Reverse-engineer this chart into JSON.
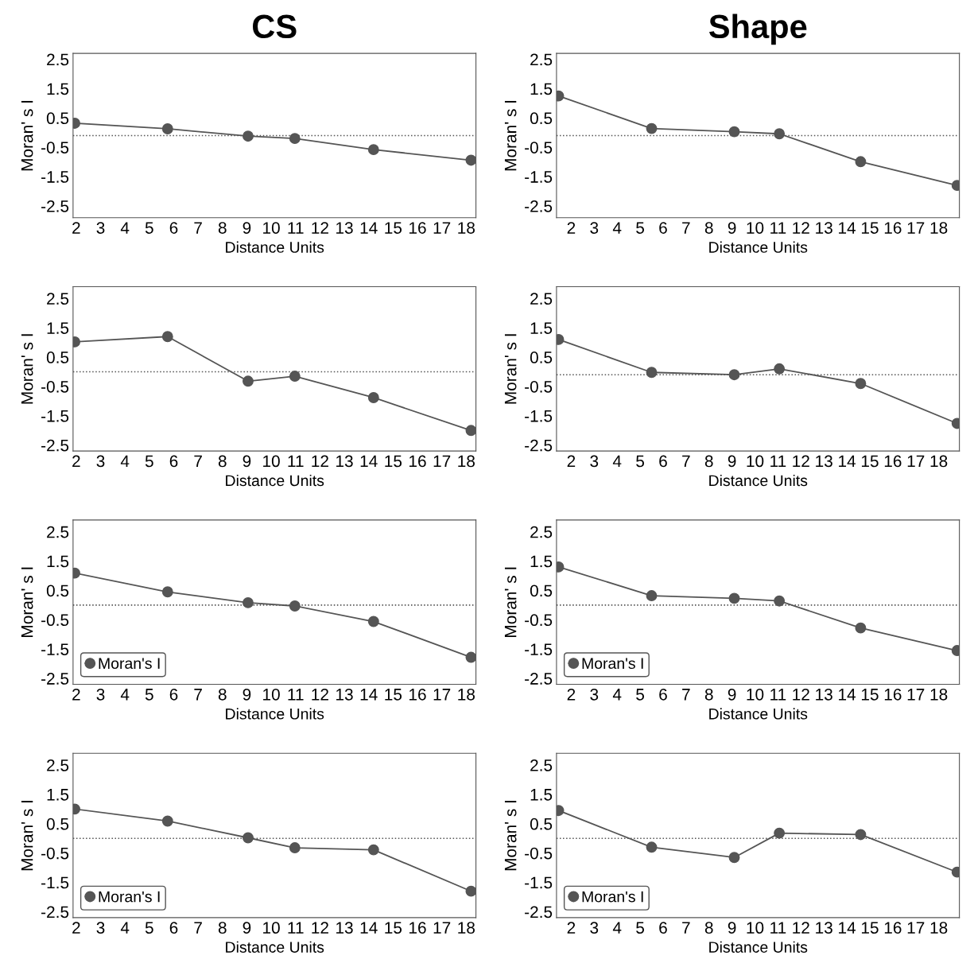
{
  "chart_data": [
    {
      "type": "line",
      "title": "CS",
      "xlabel": "Distance Units",
      "ylabel": "Moran' s I",
      "marker": "circle",
      "line_style": "solid",
      "grid": false,
      "legend": false,
      "series": [
        {
          "color": "#555555",
          "x": [
            1.94,
            5.75,
            9.05,
            10.97,
            14.2,
            18.2
          ],
          "values": [
            0.32,
            0.13,
            -0.12,
            -0.2,
            -0.58,
            -0.94
          ]
        }
      ],
      "xlim": [
        1.87,
        18.4
      ],
      "xticks": [
        2,
        3,
        4,
        5,
        6,
        7,
        8,
        9,
        10,
        11,
        12,
        13,
        14,
        15,
        16,
        17,
        18
      ],
      "ylim": [
        -2.9,
        2.7
      ],
      "yticks": [
        -2.5,
        -1.5,
        -0.5,
        0.5,
        1.5,
        2.5
      ],
      "ref_lines": [
        {
          "axis": "y",
          "value": -0.1,
          "color": "#555555",
          "line_style": "dotted"
        }
      ]
    },
    {
      "type": "line",
      "title": "Shape",
      "xlabel": "Distance Units",
      "ylabel": "Moran' s I",
      "marker": "circle",
      "line_style": "solid",
      "grid": false,
      "legend": false,
      "series": [
        {
          "color": "#555555",
          "x": [
            1.45,
            5.5,
            9.1,
            11.06,
            14.6,
            18.8
          ],
          "values": [
            1.25,
            0.14,
            0.03,
            -0.04,
            -0.99,
            -1.8
          ]
        }
      ],
      "xlim": [
        1.36,
        18.9
      ],
      "xticks": [
        2,
        3,
        4,
        5,
        6,
        7,
        8,
        9,
        10,
        11,
        12,
        13,
        14,
        15,
        16,
        17,
        18
      ],
      "ylim": [
        -2.9,
        2.7
      ],
      "yticks": [
        -2.5,
        -1.5,
        -0.5,
        0.5,
        1.5,
        2.5
      ],
      "ref_lines": [
        {
          "axis": "y",
          "value": -0.1,
          "color": "#555555",
          "line_style": "dotted"
        }
      ]
    },
    {
      "type": "line",
      "xlabel": "Distance Units",
      "ylabel": "Moran' s I",
      "marker": "circle",
      "line_style": "solid",
      "grid": false,
      "legend": false,
      "series": [
        {
          "color": "#555555",
          "x": [
            1.94,
            5.75,
            9.05,
            10.97,
            14.2,
            18.2
          ],
          "values": [
            1.02,
            1.2,
            -0.32,
            -0.15,
            -0.88,
            -2.0
          ]
        }
      ],
      "xlim": [
        1.87,
        18.4
      ],
      "xticks": [
        2,
        3,
        4,
        5,
        6,
        7,
        8,
        9,
        10,
        11,
        12,
        13,
        14,
        15,
        16,
        17,
        18
      ],
      "ylim": [
        -2.7,
        2.9
      ],
      "yticks": [
        -2.5,
        -1.5,
        -0.5,
        0.5,
        1.5,
        2.5
      ],
      "ref_lines": [
        {
          "axis": "y",
          "value": 0,
          "color": "#555555",
          "line_style": "dotted"
        }
      ]
    },
    {
      "type": "line",
      "xlabel": "Distance Units",
      "ylabel": "Moran' s I",
      "marker": "circle",
      "line_style": "solid",
      "grid": false,
      "legend": false,
      "series": [
        {
          "color": "#555555",
          "x": [
            1.45,
            5.5,
            9.1,
            11.06,
            14.6,
            18.8
          ],
          "values": [
            1.1,
            -0.02,
            -0.1,
            0.1,
            -0.4,
            -1.76
          ]
        }
      ],
      "xlim": [
        1.36,
        18.9
      ],
      "xticks": [
        2,
        3,
        4,
        5,
        6,
        7,
        8,
        9,
        10,
        11,
        12,
        13,
        14,
        15,
        16,
        17,
        18
      ],
      "ylim": [
        -2.7,
        2.9
      ],
      "yticks": [
        -2.5,
        -1.5,
        -0.5,
        0.5,
        1.5,
        2.5
      ],
      "ref_lines": [
        {
          "axis": "y",
          "value": -0.1,
          "color": "#555555",
          "line_style": "dotted"
        }
      ]
    },
    {
      "type": "line",
      "xlabel": "Distance Units",
      "ylabel": "Moran' s I",
      "marker": "circle",
      "line_style": "solid",
      "grid": false,
      "legend": "bottom left",
      "series": [
        {
          "name": "Moran's I",
          "color": "#555555",
          "x": [
            1.94,
            5.75,
            9.05,
            10.97,
            14.2,
            18.2
          ],
          "values": [
            1.09,
            0.45,
            0.08,
            -0.03,
            -0.56,
            -1.78
          ]
        }
      ],
      "xlim": [
        1.87,
        18.4
      ],
      "xticks": [
        2,
        3,
        4,
        5,
        6,
        7,
        8,
        9,
        10,
        11,
        12,
        13,
        14,
        15,
        16,
        17,
        18
      ],
      "ylim": [
        -2.7,
        2.9
      ],
      "yticks": [
        -2.5,
        -1.5,
        -0.5,
        0.5,
        1.5,
        2.5
      ],
      "ref_lines": [
        {
          "axis": "y",
          "value": 0,
          "color": "#555555",
          "line_style": "dotted"
        }
      ]
    },
    {
      "type": "line",
      "xlabel": "Distance Units",
      "ylabel": "Moran' s I",
      "marker": "circle",
      "line_style": "solid",
      "grid": false,
      "legend": "bottom left",
      "series": [
        {
          "name": "Moran's I",
          "color": "#555555",
          "x": [
            1.45,
            5.5,
            9.1,
            11.06,
            14.6,
            18.8
          ],
          "values": [
            1.3,
            0.32,
            0.23,
            0.14,
            -0.78,
            -1.55
          ]
        }
      ],
      "xlim": [
        1.36,
        18.9
      ],
      "xticks": [
        2,
        3,
        4,
        5,
        6,
        7,
        8,
        9,
        10,
        11,
        12,
        13,
        14,
        15,
        16,
        17,
        18
      ],
      "ylim": [
        -2.7,
        2.9
      ],
      "yticks": [
        -2.5,
        -1.5,
        -0.5,
        0.5,
        1.5,
        2.5
      ],
      "ref_lines": [
        {
          "axis": "y",
          "value": 0,
          "color": "#555555",
          "line_style": "dotted"
        }
      ]
    },
    {
      "type": "line",
      "xlabel": "Distance Units",
      "ylabel": "Moran' s I",
      "marker": "circle",
      "line_style": "solid",
      "grid": false,
      "legend": "bottom left",
      "series": [
        {
          "name": "Moran's I",
          "color": "#555555",
          "x": [
            1.94,
            5.75,
            9.05,
            10.97,
            14.2,
            18.2
          ],
          "values": [
            1.0,
            0.59,
            0.02,
            -0.32,
            -0.39,
            -1.8
          ]
        }
      ],
      "xlim": [
        1.87,
        18.4
      ],
      "xticks": [
        2,
        3,
        4,
        5,
        6,
        7,
        8,
        9,
        10,
        11,
        12,
        13,
        14,
        15,
        16,
        17,
        18
      ],
      "ylim": [
        -2.7,
        2.9
      ],
      "yticks": [
        -2.5,
        -1.5,
        -0.5,
        0.5,
        1.5,
        2.5
      ],
      "ref_lines": [
        {
          "axis": "y",
          "value": 0,
          "color": "#555555",
          "line_style": "dotted"
        }
      ]
    },
    {
      "type": "line",
      "xlabel": "Distance Units",
      "ylabel": "Moran' s I",
      "marker": "circle",
      "line_style": "solid",
      "grid": false,
      "legend": "bottom left",
      "series": [
        {
          "name": "Moran's I",
          "color": "#555555",
          "x": [
            1.45,
            5.5,
            9.1,
            11.06,
            14.6,
            18.8
          ],
          "values": [
            0.95,
            -0.3,
            -0.65,
            0.18,
            0.13,
            -1.15
          ]
        }
      ],
      "xlim": [
        1.36,
        18.9
      ],
      "xticks": [
        2,
        3,
        4,
        5,
        6,
        7,
        8,
        9,
        10,
        11,
        12,
        13,
        14,
        15,
        16,
        17,
        18
      ],
      "ylim": [
        -2.7,
        2.9
      ],
      "yticks": [
        -2.5,
        -1.5,
        -0.5,
        0.5,
        1.5,
        2.5
      ],
      "ref_lines": [
        {
          "axis": "y",
          "value": 0,
          "color": "#555555",
          "line_style": "dotted"
        }
      ]
    }
  ]
}
